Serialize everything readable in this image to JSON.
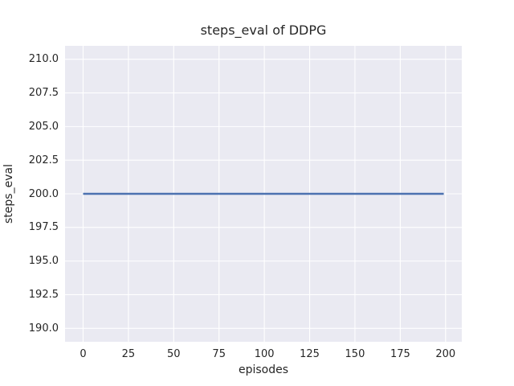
{
  "chart_data": {
    "type": "line",
    "title": "steps_eval of DDPG",
    "xlabel": "episodes",
    "ylabel": "steps_eval",
    "xlim": [
      -9.95,
      208.95
    ],
    "ylim": [
      189,
      211
    ],
    "xticks": [
      0,
      25,
      50,
      75,
      100,
      125,
      150,
      175,
      200
    ],
    "xtick_labels": [
      "0",
      "25",
      "50",
      "75",
      "100",
      "125",
      "150",
      "175",
      "200"
    ],
    "yticks": [
      190,
      192.5,
      195,
      197.5,
      200,
      202.5,
      205,
      207.5,
      210
    ],
    "ytick_labels": [
      "190.0",
      "192.5",
      "195.0",
      "197.5",
      "200.0",
      "202.5",
      "205.0",
      "207.5",
      "210.0"
    ],
    "grid": true,
    "legend": "none",
    "series": [
      {
        "name": "steps_eval",
        "color": "#4c72b0",
        "x": [
          0,
          199
        ],
        "values": [
          200,
          200
        ]
      }
    ],
    "colors": {
      "figure_background": "#ffffff",
      "axes_background": "#eaeaf2",
      "gridline": "#ffffff",
      "text": "#262626",
      "line": "#4c72b0"
    }
  }
}
